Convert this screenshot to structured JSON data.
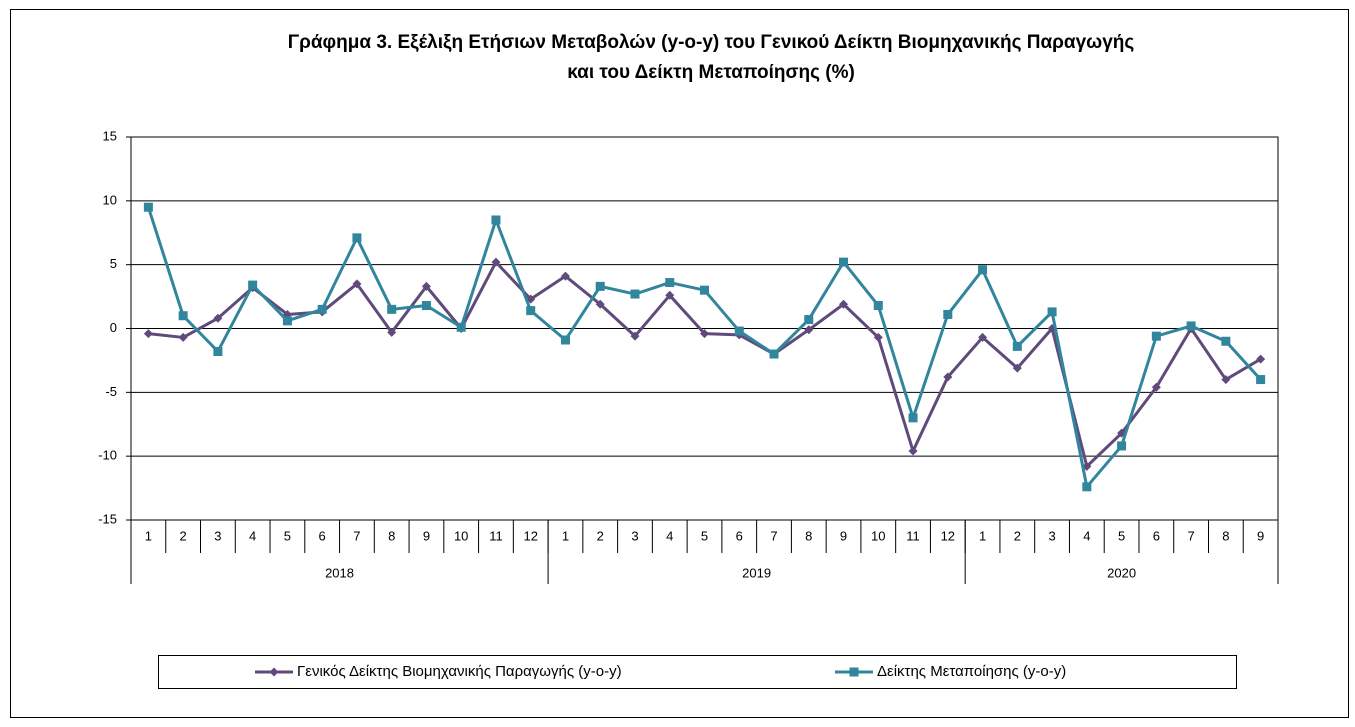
{
  "chart_data": {
    "type": "line",
    "title": [
      "Γράφημα 3. Εξέλιξη Ετήσιων Μεταβολών (y-o-y) του Γενικού Δείκτη Βιομηχανικής Παραγωγής",
      "και του Δείκτη Μεταποίησης (%)"
    ],
    "groups": [
      {
        "name": "2018",
        "categories": [
          "1",
          "2",
          "3",
          "4",
          "5",
          "6",
          "7",
          "8",
          "9",
          "10",
          "11",
          "12"
        ]
      },
      {
        "name": "2019",
        "categories": [
          "1",
          "2",
          "3",
          "4",
          "5",
          "6",
          "7",
          "8",
          "9",
          "10",
          "11",
          "12"
        ]
      },
      {
        "name": "2020",
        "categories": [
          "1",
          "2",
          "3",
          "4",
          "5",
          "6",
          "7",
          "8",
          "9"
        ]
      }
    ],
    "series": [
      {
        "name": "Γενικός Δείκτης Βιομηχανικής Παραγωγής (y-o-y)",
        "color": "#604a7b",
        "marker": "diamond",
        "values": [
          -0.4,
          -0.7,
          0.8,
          3.2,
          1.1,
          1.3,
          3.5,
          -0.3,
          3.3,
          0.0,
          5.2,
          2.3,
          4.1,
          1.9,
          -0.6,
          2.6,
          -0.4,
          -0.5,
          -2.0,
          -0.1,
          1.9,
          -0.7,
          -9.6,
          -3.8,
          -0.7,
          -3.1,
          0.0,
          -10.8,
          -8.2,
          -4.6,
          0.0,
          -4.0,
          -2.4
        ]
      },
      {
        "name": "Δείκτης Μεταποίησης (y-o-y)",
        "color": "#31859c",
        "marker": "square",
        "values": [
          9.5,
          1.0,
          -1.8,
          3.4,
          0.6,
          1.5,
          7.1,
          1.5,
          1.8,
          0.1,
          8.5,
          1.4,
          -0.9,
          3.3,
          2.7,
          3.6,
          3.0,
          -0.2,
          -2.0,
          0.7,
          5.2,
          1.8,
          -7.0,
          1.1,
          4.6,
          -1.4,
          1.3,
          -12.4,
          -9.2,
          -0.6,
          0.2,
          -1.0,
          -4.0
        ]
      }
    ],
    "ylim": [
      -15,
      15
    ],
    "yticks": [
      -15,
      -10,
      -5,
      0,
      5,
      10,
      15
    ],
    "grid": true,
    "legend": "bottom"
  }
}
